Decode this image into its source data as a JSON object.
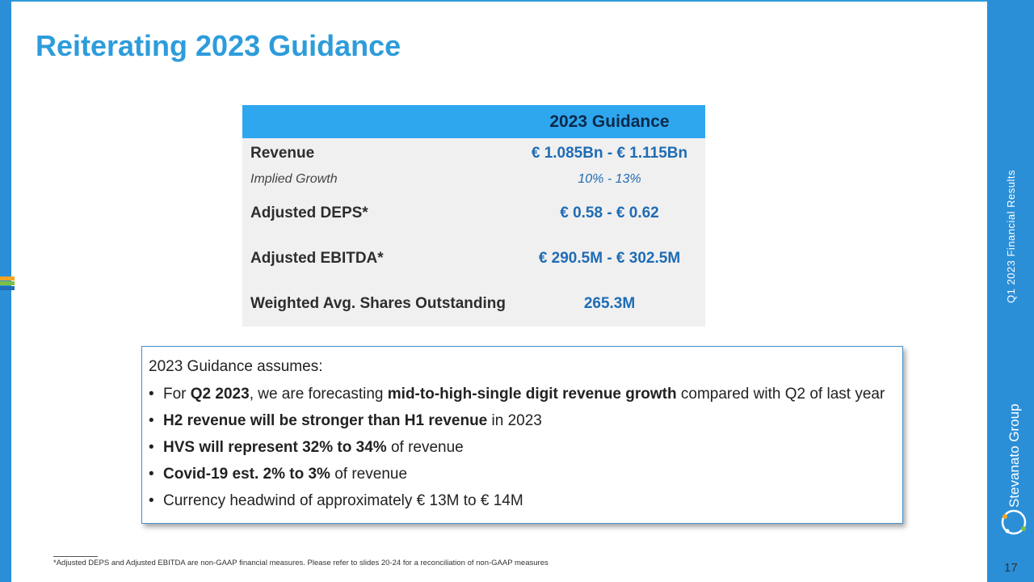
{
  "slide": {
    "title": "Reiterating 2023 Guidance",
    "side_title": "Q1 2023 Financial Results",
    "brand": "Stevanato Group",
    "page_number": "17",
    "footnote_rule": "__________",
    "footnote": "*Adjusted DEPS and Adjusted EBITDA are non-GAAP financial measures. Please refer to slides 20-24 for a reconciliation of non-GAAP measures",
    "colors": {
      "accent": "#2d9cdb",
      "sidebar": "#2b8fd8",
      "table_header": "#2fa7ef",
      "value_text": "#1f6cb4",
      "table_body": "#f0f0f0"
    }
  },
  "table": {
    "header": "2023 Guidance",
    "rows": [
      {
        "label": "Revenue",
        "value": "€ 1.085Bn - € 1.115Bn"
      },
      {
        "label": "Implied Growth",
        "value": "10% - 13%"
      },
      {
        "label": "Adjusted DEPS*",
        "value": "€ 0.58 - € 0.62"
      },
      {
        "label": "Adjusted EBITDA*",
        "value": "€ 290.5M - € 302.5M"
      },
      {
        "label": "Weighted Avg. Shares Outstanding",
        "value": "265.3M"
      }
    ]
  },
  "assumptions": {
    "lead": "2023 Guidance assumes:",
    "bullet_glyph": "•",
    "items": [
      {
        "p1": "For ",
        "b1": "Q2 2023",
        "p2": ", we are forecasting ",
        "b2": "mid-to-high-single digit revenue growth",
        "p3": " compared with Q2 of last year"
      },
      {
        "b1": "H2 revenue will be stronger than H1 revenue",
        "p2": " in 2023"
      },
      {
        "b1": "HVS will represent 32% to 34%",
        "p2": " of revenue"
      },
      {
        "b1": "Covid-19 est. 2% to 3%",
        "p2": " of revenue"
      },
      {
        "p1": "Currency headwind of approximately € 13M to € 14M"
      }
    ]
  }
}
